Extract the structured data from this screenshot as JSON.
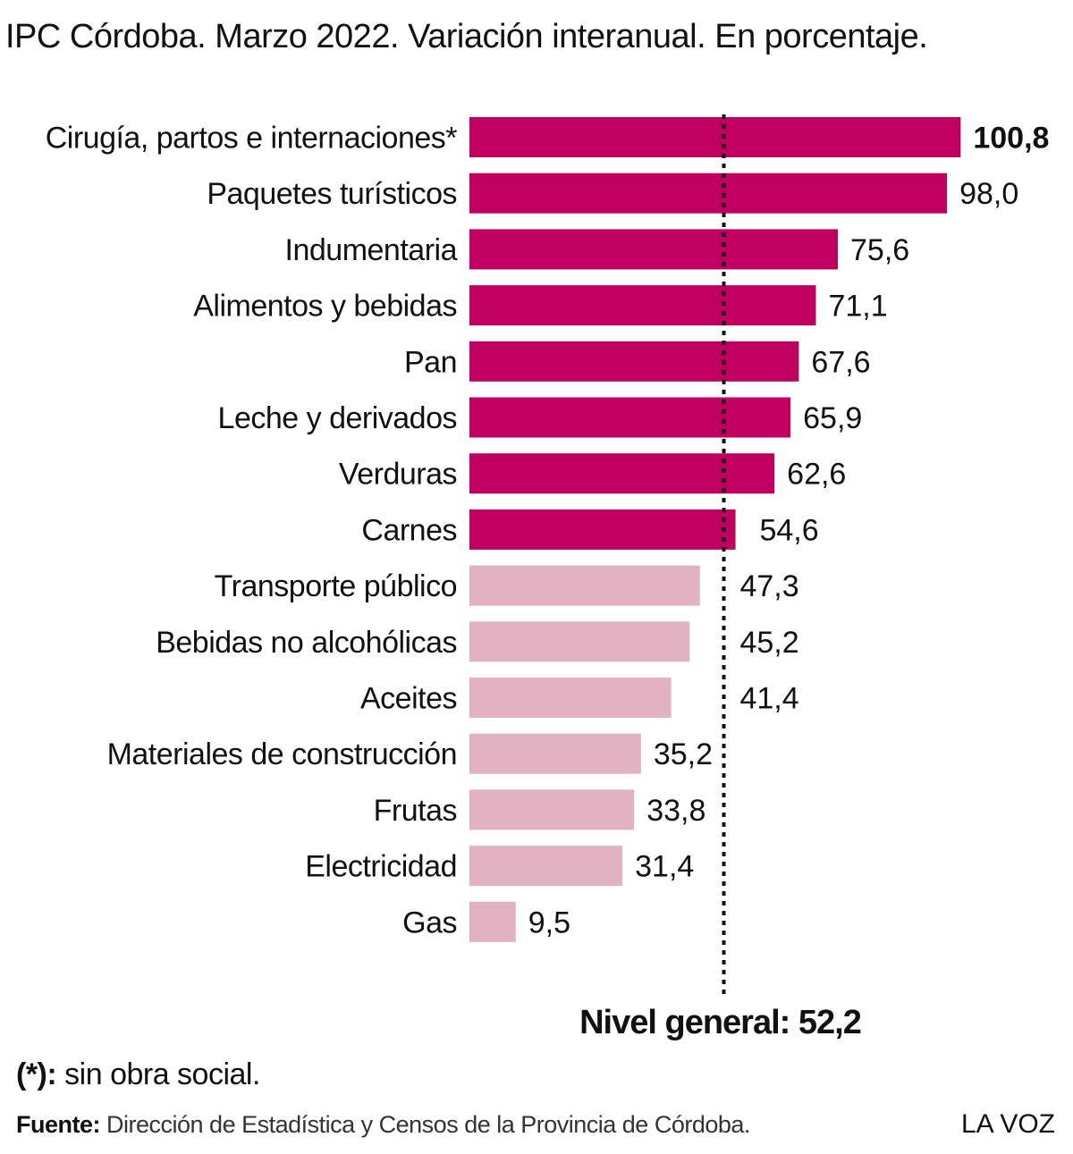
{
  "title": "IPC Córdoba. Marzo 2022. Variación interanual. En porcentaje.",
  "footnote": {
    "marker": "(*):",
    "text": "sin obra social."
  },
  "source": {
    "label": "Fuente:",
    "text": "Dirección de Estadística y Censos de la Provincia de Córdoba."
  },
  "brand": "LA VOZ",
  "colors": {
    "above": "#BF0060",
    "below": "#E2B2C2",
    "text": "#111111"
  },
  "chart_data": {
    "type": "bar",
    "orientation": "horizontal",
    "categories": [
      "Cirugía, partos e internaciones*",
      "Paquetes turísticos",
      "Indumentaria",
      "Alimentos y bebidas",
      "Pan",
      "Leche y derivados",
      "Verduras",
      "Carnes",
      "Transporte público",
      "Bebidas no alcohólicas",
      "Aceites",
      "Materiales de construcción",
      "Frutas",
      "Electricidad",
      "Gas"
    ],
    "values": [
      100.8,
      98.0,
      75.6,
      71.1,
      67.6,
      65.9,
      62.6,
      54.6,
      47.3,
      45.2,
      41.4,
      35.2,
      33.8,
      31.4,
      9.5
    ],
    "value_labels": [
      "100,8",
      "98,0",
      "75,6",
      "71,1",
      "67,6",
      "65,9",
      "62,6",
      "54,6",
      "47,3",
      "45,2",
      "41,4",
      "35,2",
      "33,8",
      "31,4",
      "9,5"
    ],
    "reference": {
      "value": 52.2,
      "label": "Nivel general: 52,2",
      "style": "dotted"
    },
    "title": "IPC Córdoba. Marzo 2022. Variación interanual. En porcentaje.",
    "xlabel": "",
    "ylabel": "",
    "grid": false,
    "legend": "none"
  }
}
